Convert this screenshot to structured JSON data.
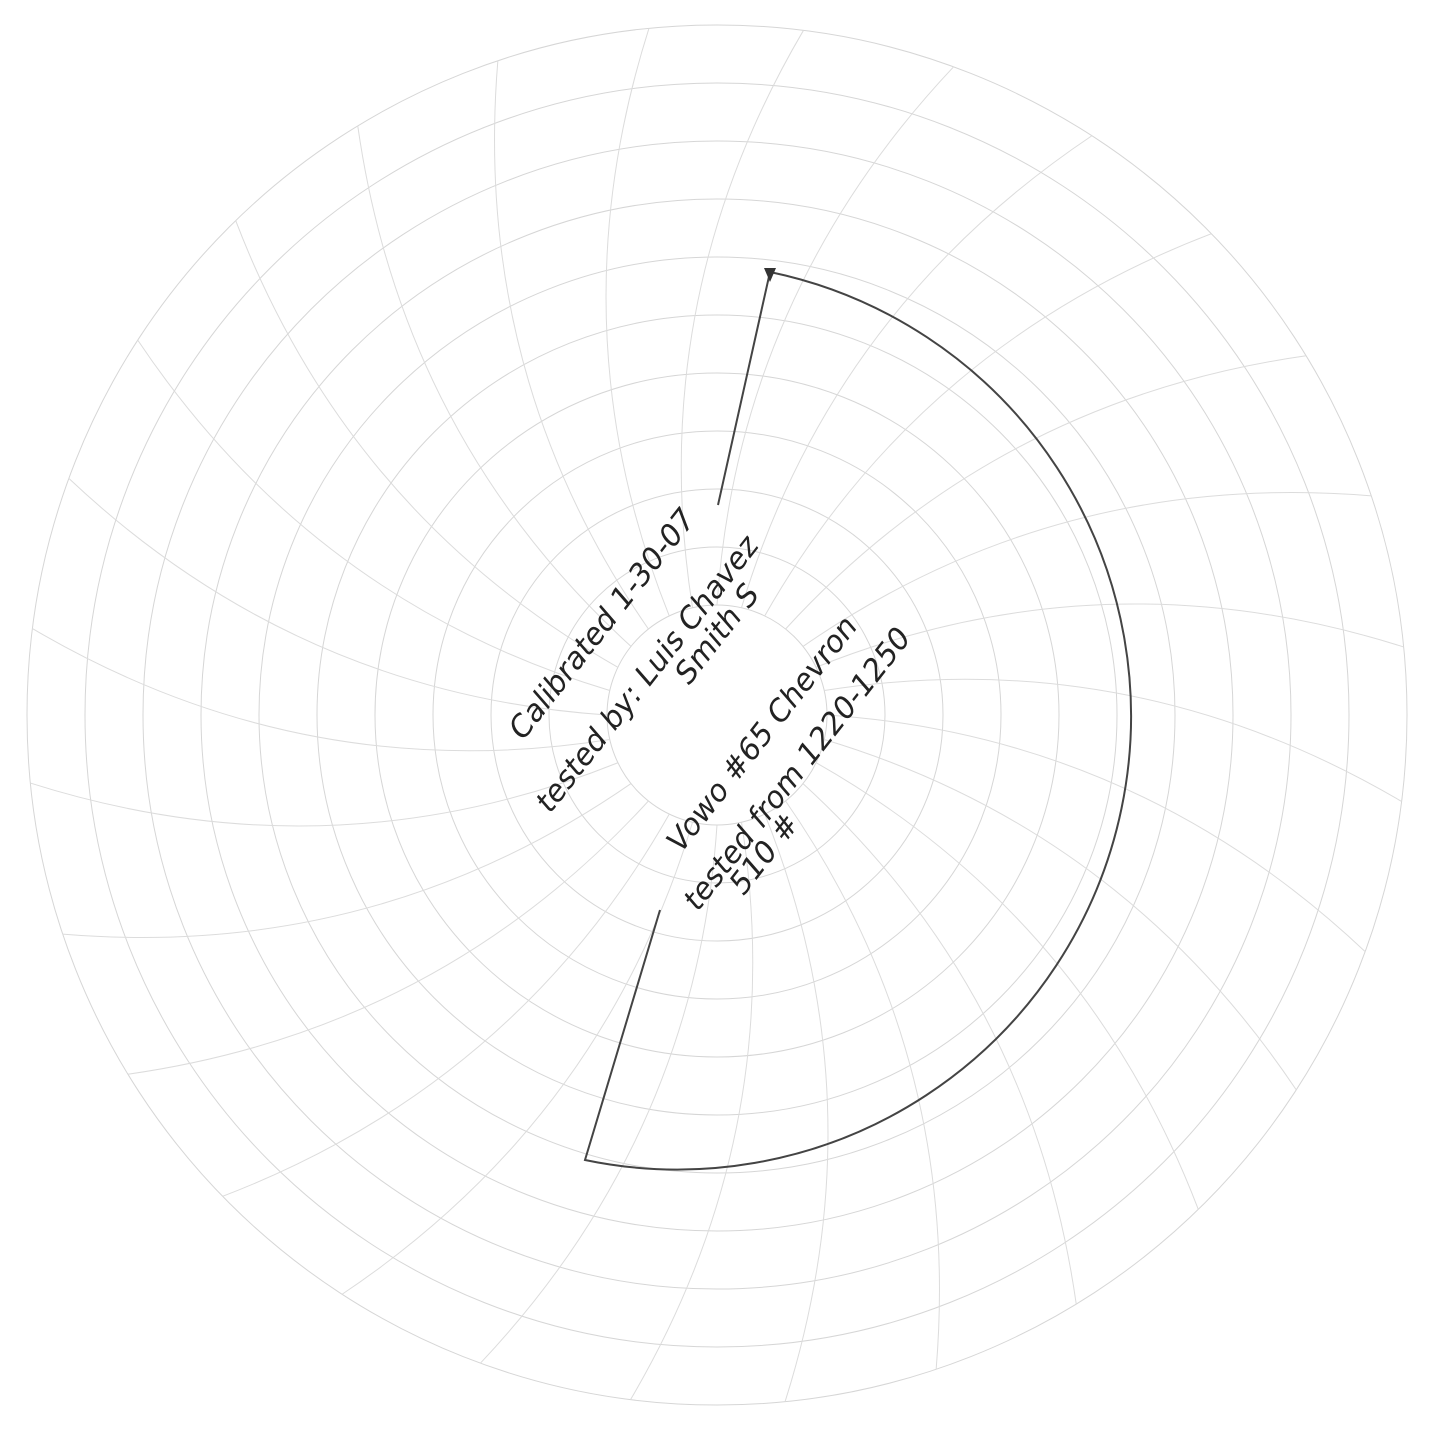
{
  "notes": [
    "Calibrated 1-30-07",
    "tested by: Luis Chavez",
    "Smith S",
    "Vowo #65 Chevron",
    "tested from 1220-1250",
    "510 #"
  ]
}
